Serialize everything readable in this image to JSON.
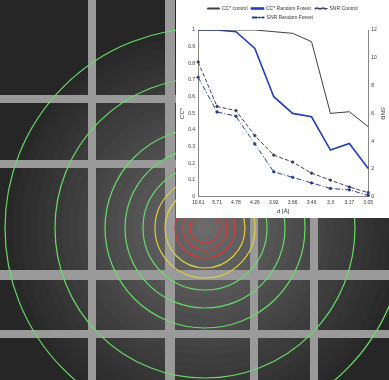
{
  "chart_data": {
    "type": "line",
    "x_label": "d [Å]",
    "y_label": "CC*",
    "y2_label": "SNR",
    "categories": [
      "10.61",
      "5.71",
      "4.78",
      "4.26",
      "3.92",
      "3.66",
      "3.46",
      "3.3",
      "3.17",
      "3.05"
    ],
    "series": [
      {
        "name": "CC* control",
        "color": "#404040",
        "line_style": "solid",
        "marker": "none",
        "values": [
          1,
          1,
          1,
          1,
          0.99,
          0.98,
          0.93,
          0.5,
          0.51,
          0.42
        ]
      },
      {
        "name": "CC* Random Forest",
        "color": "#1f3fbf",
        "line_style": "solid",
        "marker": "none",
        "values": [
          1,
          1,
          0.99,
          0.89,
          0.6,
          0.5,
          0.48,
          0.28,
          0.32,
          0.17
        ]
      },
      {
        "name": "SNR Control",
        "color": "#404060",
        "line_style": "dashed",
        "marker": "circle",
        "axis": "y2",
        "values": [
          9.7,
          6.5,
          6.2,
          4.4,
          3.0,
          2.5,
          1.7,
          1.2,
          0.7,
          0.3
        ]
      },
      {
        "name": "SNR Random Forest",
        "color": "#1f3f9f",
        "line_style": "dashdot",
        "marker": "circle",
        "axis": "y2",
        "values": [
          8.6,
          6.1,
          5.8,
          3.8,
          1.8,
          1.4,
          1.0,
          0.6,
          0.5,
          0.1
        ]
      }
    ],
    "ylim": [
      0,
      1
    ],
    "yticks": [
      0,
      0.1,
      0.2,
      0.3,
      0.4,
      0.5,
      0.6,
      0.7,
      0.8,
      0.9,
      1
    ],
    "y2lim": [
      0,
      12
    ],
    "y2ticks": [
      0,
      2,
      4,
      6,
      8,
      10,
      12
    ],
    "grid": false,
    "legend": "top"
  }
}
